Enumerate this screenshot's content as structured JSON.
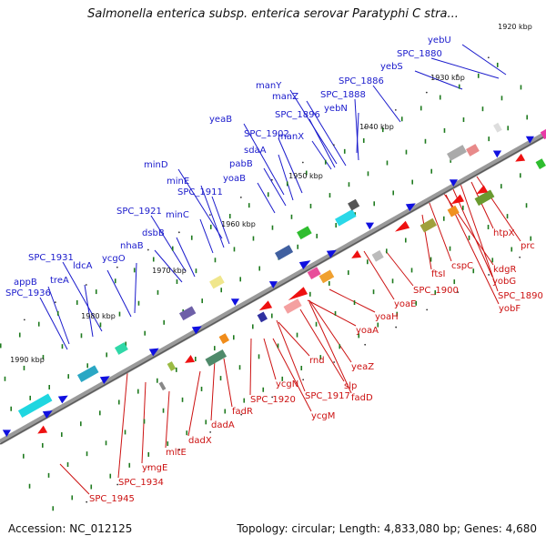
{
  "title": "Salmonella enterica subsp. enterica serovar Paratyphi C stra...",
  "footer": {
    "accession": "Accession: NC_012125",
    "stats": "Topology: circular; Length: 4,833,080 bp; Genes: 4,680"
  },
  "colors": {
    "forward_label": "#1a1acc",
    "reverse_label": "#cc1111",
    "backbone": "#888888",
    "tick": "#1e7a1e"
  },
  "kbp_ticks": [
    "1920 kbp",
    "1930 kbp",
    "1940 kbp",
    "1950 kbp",
    "1960 kbp",
    "1970 kbp",
    "1980 kbp",
    "1990 kbp"
  ],
  "forward_genes": [
    "yebU",
    "SPC_1880",
    "yebS",
    "SPC_1886",
    "manY",
    "manZ",
    "SPC_1888",
    "yebN",
    "SPC_1896",
    "yeaB",
    "SPC_1902",
    "manX",
    "sdaA",
    "pabB",
    "yoaB",
    "minD",
    "minE",
    "SPC_1911",
    "minC",
    "SPC_1921",
    "dsbB",
    "nhaB",
    "ldcA",
    "ycgO",
    "SPC_1931",
    "treA",
    "appB",
    "SPC_1936"
  ],
  "reverse_genes": [
    "htpX",
    "prc",
    "kdgR",
    "cspC",
    "yobG",
    "SPC_1890",
    "yobF",
    "ftsI",
    "SPC_1900",
    "yoaE",
    "yoaH",
    "yoaA",
    "yeaZ",
    "slp",
    "rnd",
    "fadD",
    "SPC_1917",
    "ycgM",
    "ycgN",
    "SPC_1920",
    "fadR",
    "dadX",
    "dadA",
    "mltE",
    "ymgE",
    "SPC_1934",
    "SPC_1945"
  ]
}
